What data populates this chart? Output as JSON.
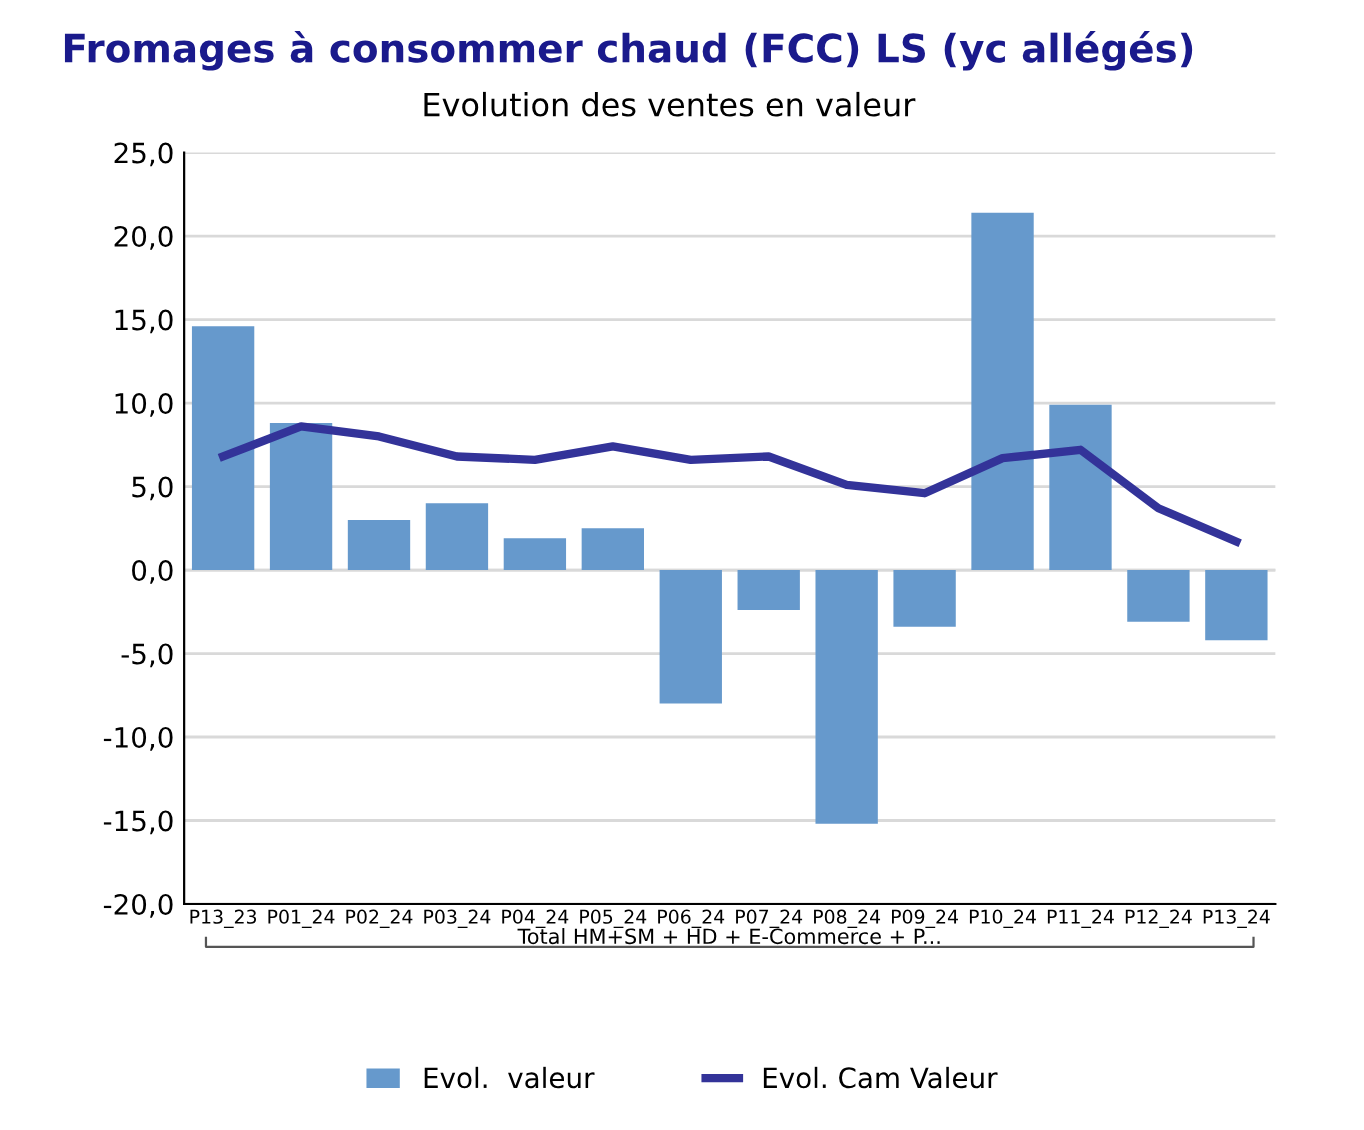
{
  "chart_data": {
    "type": "bar",
    "title": "Fromages à consommer chaud (FCC) LS (yc allégés)",
    "subtitle": "Evolution des ventes en valeur",
    "xlabel": "Total HM+SM + HD + E-Commerce + P...",
    "categories": [
      "P13_23",
      "P01_24",
      "P02_24",
      "P03_24",
      "P04_24",
      "P05_24",
      "P06_24",
      "P07_24",
      "P08_24",
      "P09_24",
      "P10_24",
      "P11_24",
      "P12_24",
      "P13_24"
    ],
    "series": [
      {
        "name": "Evol.  valeur",
        "color": "#6699cc",
        "values": [
          14.6,
          8.8,
          3.0,
          4.0,
          1.9,
          2.5,
          -8.0,
          -2.4,
          -15.2,
          -3.4,
          21.4,
          9.9,
          -3.1,
          -4.2
        ]
      },
      {
        "name": "Evol. Cam Valeur",
        "type": "line",
        "color": "#333399",
        "values": [
          6.8,
          8.6,
          8.0,
          6.8,
          6.6,
          7.4,
          6.6,
          6.8,
          5.1,
          4.6,
          6.7,
          7.2,
          3.7,
          1.7
        ]
      }
    ],
    "ylim": [
      -20,
      25
    ],
    "yticks": [
      {
        "value": -20,
        "label": "-20,0"
      },
      {
        "value": -15,
        "label": "-15,0"
      },
      {
        "value": -10,
        "label": "-10,0"
      },
      {
        "value": -5,
        "label": "-5,0"
      },
      {
        "value": 0,
        "label": "0,0"
      },
      {
        "value": 5,
        "label": "5,0"
      },
      {
        "value": 10,
        "label": "10,0"
      },
      {
        "value": 15,
        "label": "15,0"
      },
      {
        "value": 20,
        "label": "20,0"
      },
      {
        "value": 25,
        "label": "25,0"
      }
    ],
    "grid": "y",
    "legend": "bottom"
  }
}
